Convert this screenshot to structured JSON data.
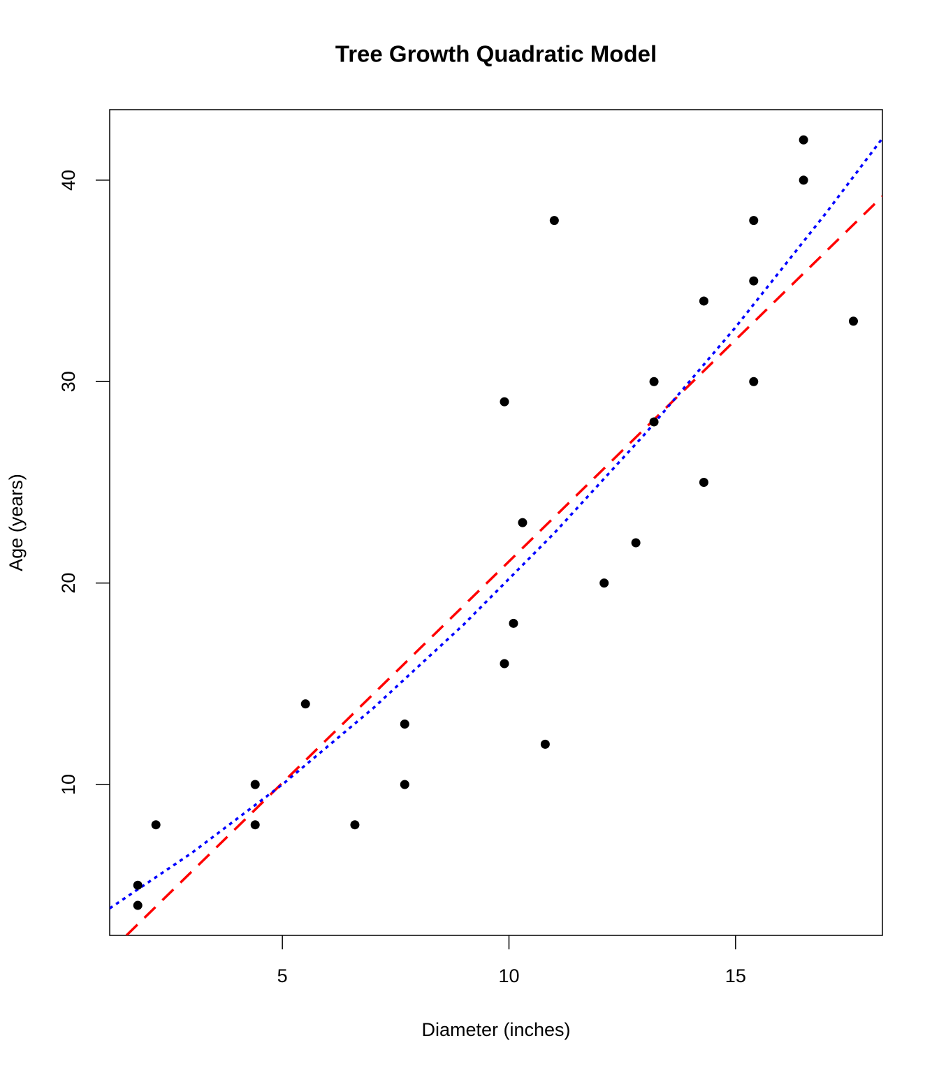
{
  "chart_data": {
    "type": "scatter",
    "title": "Tree Growth Quadratic Model",
    "x_label": "Diameter (inches)",
    "y_label": "Age (years)",
    "xlim": [
      1.19,
      18.24
    ],
    "ylim": [
      2.51,
      43.5
    ],
    "xticks": [
      5,
      10,
      15
    ],
    "yticks": [
      10,
      20,
      30,
      40
    ],
    "grid": false,
    "series": [
      {
        "type": "scatter",
        "color": "#000000",
        "x": [
          1.81,
          1.81,
          2.21,
          4.4,
          4.4,
          5.51,
          6.6,
          7.7,
          7.7,
          9.9,
          9.9,
          10.1,
          10.3,
          10.8,
          11.0,
          12.1,
          12.8,
          13.2,
          13.2,
          14.3,
          14.3,
          15.4,
          15.4,
          15.4,
          16.5,
          16.5,
          17.6
        ],
        "values": [
          5,
          4,
          8,
          10,
          8,
          14,
          8,
          13,
          10,
          29,
          16,
          18,
          23,
          12,
          38,
          20,
          22,
          30,
          28,
          34,
          25,
          38,
          35,
          30,
          42,
          40,
          33
        ]
      },
      {
        "type": "line",
        "style": "dashed",
        "color": "#ff0000",
        "x": [
          1.56,
          18.24
        ],
        "values": [
          2.51,
          39.2
        ]
      },
      {
        "type": "line",
        "style": "dotted",
        "color": "#0000ff",
        "x": [
          1.19,
          3,
          5,
          7,
          9,
          11,
          13,
          15,
          17,
          18.24
        ],
        "values": [
          3.85,
          6.6,
          10.0,
          13.78,
          17.94,
          22.48,
          27.4,
          32.7,
          38.38,
          42.08
        ]
      }
    ]
  }
}
